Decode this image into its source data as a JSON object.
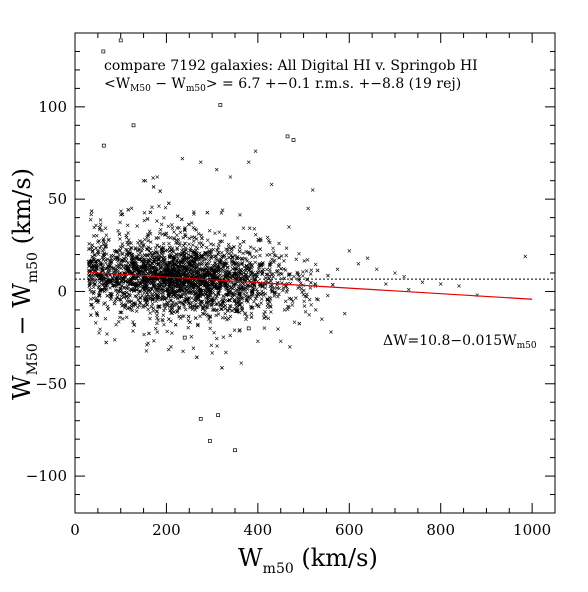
{
  "chart_data": {
    "type": "scatter",
    "title_lines": [
      "compare 7192 galaxies: All Digital HI v. Springob HI",
      "<W",
      "M50",
      " − W",
      "m50",
      "> = ",
      "6.7 +−0.1   r.m.s. +−8.8 (19 rej)"
    ],
    "title": "compare 7192 galaxies: All Digital HI v. Springob HI",
    "stats_prefix": "<W",
    "stats_sub1": "M50",
    "stats_mid": " − W",
    "stats_sub2": "m50",
    "stats_suffix": "> = 6.7 +−0.1   r.m.s. +−8.8 (19 rej)",
    "xlabel_main": "W",
    "xlabel_sub": "m50",
    "xlabel_unit": " (km/s)",
    "ylabel_main1": "W",
    "ylabel_sub1": "M50",
    "ylabel_mid": " − W",
    "ylabel_sub2": "m50",
    "ylabel_unit": " (km/s)",
    "fit_label_main": "ΔW=10.8−0.015W",
    "fit_label_sub": "m50",
    "xlim": [
      0,
      1050
    ],
    "ylim": [
      -120,
      140
    ],
    "x_ticks": [
      0,
      200,
      400,
      600,
      800,
      1000
    ],
    "x_tick_labels": [
      "0",
      "200",
      "400",
      "600",
      "800",
      "1000"
    ],
    "y_ticks": [
      -100,
      -50,
      0,
      50,
      100
    ],
    "y_tick_labels": [
      "−100",
      "−50",
      "0",
      "50",
      "100"
    ],
    "mean_offset": 6.7,
    "fit": {
      "intercept": 10.8,
      "slope": -0.015,
      "x_range": [
        30,
        1000
      ],
      "color": "#e00000"
    },
    "n_galaxies": 7192,
    "rejected_points": [
      [
        62,
        130
      ],
      [
        100,
        136
      ],
      [
        63,
        79
      ],
      [
        128,
        90
      ],
      [
        318,
        101
      ],
      [
        465,
        84
      ],
      [
        478,
        82
      ],
      [
        275,
        -69
      ],
      [
        313,
        -67
      ],
      [
        295,
        -81
      ],
      [
        350,
        -86
      ],
      [
        240,
        -25
      ],
      [
        380,
        -20
      ]
    ],
    "outlier_points": [
      [
        985,
        19
      ],
      [
        640,
        18
      ],
      [
        700,
        10
      ],
      [
        720,
        8
      ],
      [
        760,
        5
      ],
      [
        800,
        4
      ],
      [
        840,
        3
      ],
      [
        880,
        -2
      ],
      [
        660,
        12
      ],
      [
        680,
        4
      ],
      [
        730,
        1
      ],
      [
        590,
        -12
      ],
      [
        560,
        -22
      ],
      [
        540,
        -15
      ],
      [
        600,
        22
      ],
      [
        620,
        15
      ],
      [
        450,
        -27
      ],
      [
        470,
        -30
      ],
      [
        400,
        -27
      ],
      [
        330,
        -33
      ],
      [
        210,
        -30
      ],
      [
        180,
        -22
      ],
      [
        160,
        -28
      ],
      [
        90,
        -18
      ],
      [
        70,
        -23
      ],
      [
        275,
        70
      ],
      [
        310,
        66
      ],
      [
        340,
        62
      ],
      [
        235,
        72
      ],
      [
        150,
        60
      ],
      [
        180,
        62
      ],
      [
        380,
        70
      ],
      [
        395,
        76
      ],
      [
        430,
        58
      ],
      [
        510,
        45
      ],
      [
        520,
        55
      ]
    ],
    "cloud": {
      "count": 3200,
      "x_mean": 230,
      "x_sd": 115,
      "y_mean": 7,
      "y_sd": 8.8
    },
    "grid": false,
    "legend": "none"
  }
}
